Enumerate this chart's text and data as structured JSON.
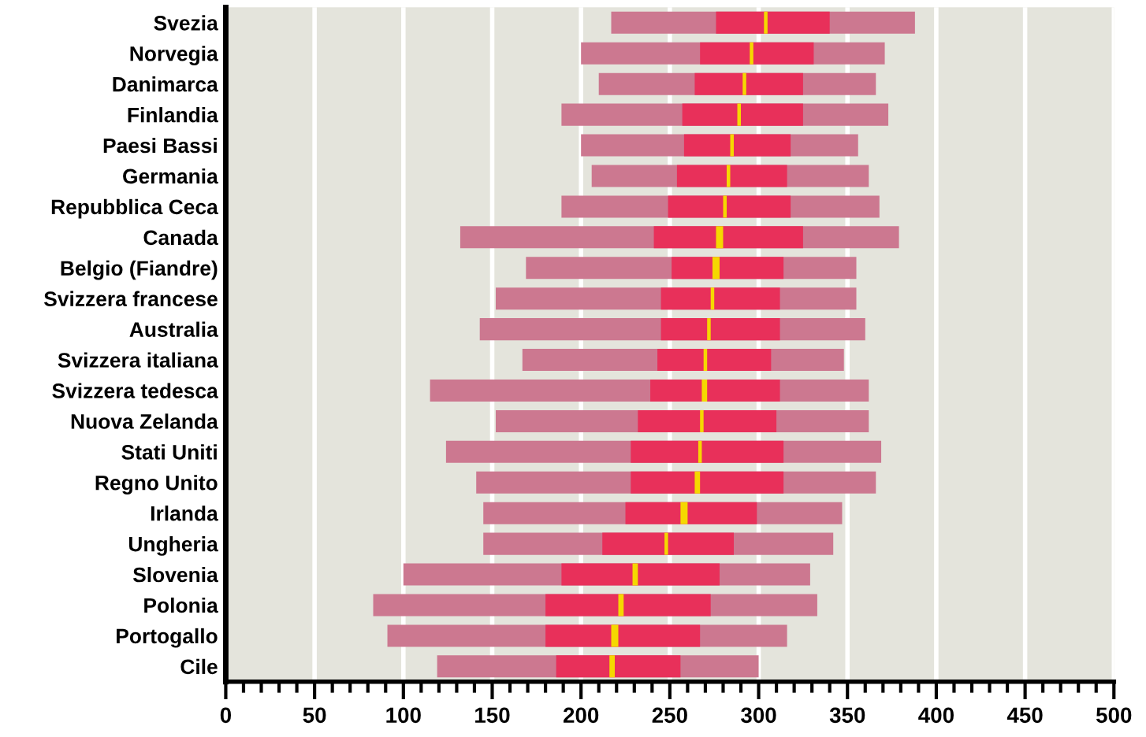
{
  "chart_data": {
    "type": "bar",
    "orientation": "horizontal",
    "categories": [
      "Svezia",
      "Norvegia",
      "Danimarca",
      "Finlandia",
      "Paesi Bassi",
      "Germania",
      "Repubblica Ceca",
      "Canada",
      "Belgio (Fiandre)",
      "Svizzera francese",
      "Australia",
      "Svizzera italiana",
      "Svizzera tedesca",
      "Nuova Zelanda",
      "Stati Uniti",
      "Regno Unito",
      "Irlanda",
      "Ungheria",
      "Slovenia",
      "Polonia",
      "Portogallo",
      "Cile"
    ],
    "series": [
      {
        "color": "#cc7890",
        "base": [
          217,
          200,
          210,
          189,
          200,
          206,
          189,
          132,
          169,
          152,
          143,
          167,
          115,
          152,
          124,
          141,
          145,
          145,
          100,
          83,
          91,
          119
        ],
        "values": [
          171,
          171,
          156,
          184,
          156,
          156,
          179,
          247,
          186,
          203,
          217,
          181,
          247,
          210,
          245,
          225,
          202,
          197,
          229,
          250,
          225,
          181
        ]
      },
      {
        "color": "#e8305a",
        "base": [
          276,
          267,
          264,
          257,
          258,
          254,
          249,
          241,
          251,
          245,
          245,
          243,
          239,
          232,
          228,
          228,
          225,
          212,
          189,
          180,
          180,
          186
        ],
        "values": [
          64,
          64,
          61,
          68,
          60,
          62,
          69,
          84,
          63,
          67,
          67,
          64,
          73,
          78,
          86,
          86,
          74,
          74,
          89,
          93,
          87,
          70
        ]
      },
      {
        "color": "#f5d800",
        "base": [
          303,
          295,
          291,
          288,
          284,
          282,
          280,
          276,
          274,
          273,
          271,
          269,
          268,
          267,
          266,
          264,
          256,
          247,
          229,
          221,
          217,
          216
        ],
        "values": [
          2,
          2,
          2,
          2,
          2,
          2,
          2,
          4,
          4,
          2,
          2,
          2,
          3,
          2,
          2,
          3,
          4,
          2,
          3,
          3,
          4,
          3
        ]
      }
    ],
    "xlim": [
      0,
      500
    ],
    "xticks": [
      0,
      {
        "value": 10,
        "label": null
      },
      {
        "value": 20,
        "label": null
      },
      {
        "value": 30,
        "label": null
      },
      {
        "value": 40,
        "label": null
      },
      50,
      {
        "value": 60,
        "label": null
      },
      {
        "value": 70,
        "label": null
      },
      {
        "value": 80,
        "label": null
      },
      {
        "value": 90,
        "label": null
      },
      100,
      {
        "value": 110,
        "label": null
      },
      {
        "value": 120,
        "label": null
      },
      {
        "value": 130,
        "label": null
      },
      {
        "value": 140,
        "label": null
      },
      150,
      {
        "value": 160,
        "label": null
      },
      {
        "value": 170,
        "label": null
      },
      {
        "value": 180,
        "label": null
      },
      {
        "value": 190,
        "label": null
      },
      200,
      {
        "value": 210,
        "label": null
      },
      {
        "value": 220,
        "label": null
      },
      {
        "value": 230,
        "label": null
      },
      {
        "value": 240,
        "label": null
      },
      250,
      {
        "value": 260,
        "label": null
      },
      {
        "value": 270,
        "label": null
      },
      {
        "value": 280,
        "label": null
      },
      {
        "value": 290,
        "label": null
      },
      300,
      {
        "value": 310,
        "label": null
      },
      {
        "value": 320,
        "label": null
      },
      {
        "value": 330,
        "label": null
      },
      {
        "value": 340,
        "label": null
      },
      350,
      {
        "value": 360,
        "label": null
      },
      {
        "value": 370,
        "label": null
      },
      {
        "value": 380,
        "label": null
      },
      {
        "value": 390,
        "label": null
      },
      400,
      {
        "value": 410,
        "label": null
      },
      {
        "value": 420,
        "label": null
      },
      {
        "value": 430,
        "label": null
      },
      {
        "value": 440,
        "label": null
      },
      450,
      {
        "value": 460,
        "label": null
      },
      {
        "value": 470,
        "label": null
      },
      {
        "value": 480,
        "label": null
      },
      {
        "value": 490,
        "label": null
      },
      500
    ],
    "grid": "x",
    "legend": false
  }
}
